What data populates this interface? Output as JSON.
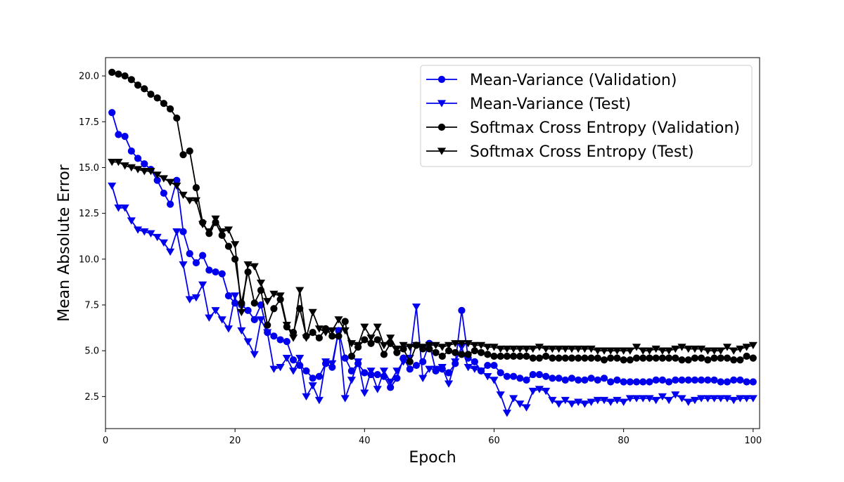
{
  "chart_data": {
    "type": "line",
    "title": "",
    "xlabel": "Epoch",
    "ylabel": "Mean Absolute Error",
    "xlim": [
      0,
      101
    ],
    "ylim": [
      0.75,
      21.0
    ],
    "xticks": [
      0,
      20,
      40,
      60,
      80,
      100
    ],
    "xtick_labels": [
      "0",
      "20",
      "40",
      "60",
      "80",
      "100"
    ],
    "yticks": [
      2.5,
      5.0,
      7.5,
      10.0,
      12.5,
      15.0,
      17.5,
      20.0
    ],
    "ytick_labels": [
      "2.5",
      "5.0",
      "7.5",
      "10.0",
      "12.5",
      "15.0",
      "17.5",
      "20.0"
    ],
    "grid": false,
    "legend_position": "top-right",
    "x": [
      1,
      2,
      3,
      4,
      5,
      6,
      7,
      8,
      9,
      10,
      11,
      12,
      13,
      14,
      15,
      16,
      17,
      18,
      19,
      20,
      21,
      22,
      23,
      24,
      25,
      26,
      27,
      28,
      29,
      30,
      31,
      32,
      33,
      34,
      35,
      36,
      37,
      38,
      39,
      40,
      41,
      42,
      43,
      44,
      45,
      46,
      47,
      48,
      49,
      50,
      51,
      52,
      53,
      54,
      55,
      56,
      57,
      58,
      59,
      60,
      61,
      62,
      63,
      64,
      65,
      66,
      67,
      68,
      69,
      70,
      71,
      72,
      73,
      74,
      75,
      76,
      77,
      78,
      79,
      80,
      81,
      82,
      83,
      84,
      85,
      86,
      87,
      88,
      89,
      90,
      91,
      92,
      93,
      94,
      95,
      96,
      97,
      98,
      99,
      100
    ],
    "series": [
      {
        "name": "Mean-Variance (Validation)",
        "color": "#0000ee",
        "marker": "circle",
        "values": [
          18.0,
          16.8,
          16.7,
          15.9,
          15.5,
          15.2,
          14.9,
          14.3,
          13.6,
          13.0,
          14.3,
          11.5,
          10.3,
          9.8,
          10.2,
          9.4,
          9.3,
          9.2,
          8.0,
          7.6,
          7.5,
          7.2,
          6.7,
          7.5,
          6.0,
          5.8,
          5.6,
          5.5,
          4.5,
          4.2,
          3.9,
          3.5,
          3.6,
          4.3,
          4.1,
          6.1,
          4.6,
          3.9,
          4.3,
          3.8,
          3.7,
          3.7,
          3.6,
          3.0,
          3.5,
          4.6,
          4.0,
          4.2,
          4.4,
          5.4,
          3.9,
          4.0,
          3.8,
          4.3,
          7.2,
          4.6,
          4.4,
          3.9,
          4.2,
          4.2,
          3.8,
          3.6,
          3.6,
          3.5,
          3.4,
          3.7,
          3.7,
          3.6,
          3.5,
          3.5,
          3.4,
          3.5,
          3.4,
          3.4,
          3.5,
          3.4,
          3.5,
          3.3,
          3.4,
          3.3,
          3.3,
          3.3,
          3.3,
          3.3,
          3.4,
          3.4,
          3.3,
          3.4,
          3.4,
          3.4,
          3.4,
          3.4,
          3.4,
          3.4,
          3.3,
          3.3,
          3.4,
          3.4,
          3.3,
          3.3
        ]
      },
      {
        "name": "Mean-Variance (Test)",
        "color": "#0000ee",
        "marker": "triangle-down",
        "values": [
          14.0,
          12.8,
          12.8,
          12.1,
          11.6,
          11.5,
          11.4,
          11.2,
          10.9,
          10.4,
          11.5,
          9.7,
          7.8,
          7.9,
          8.6,
          6.8,
          7.2,
          6.7,
          6.2,
          8.0,
          6.1,
          5.5,
          4.8,
          6.7,
          6.0,
          4.0,
          4.1,
          4.6,
          3.9,
          4.6,
          2.5,
          3.1,
          2.3,
          4.4,
          4.3,
          6.1,
          2.4,
          3.4,
          4.4,
          2.7,
          3.9,
          2.9,
          3.9,
          3.3,
          3.9,
          4.4,
          4.6,
          7.4,
          3.5,
          4.0,
          4.0,
          4.1,
          3.2,
          4.4,
          5.2,
          4.1,
          4.0,
          3.9,
          3.6,
          3.4,
          2.6,
          1.6,
          2.4,
          2.1,
          1.9,
          2.8,
          2.9,
          2.8,
          2.3,
          2.1,
          2.3,
          2.1,
          2.2,
          2.1,
          2.2,
          2.3,
          2.3,
          2.2,
          2.3,
          2.2,
          2.4,
          2.4,
          2.4,
          2.4,
          2.3,
          2.5,
          2.3,
          2.6,
          2.4,
          2.2,
          2.3,
          2.4,
          2.4,
          2.4,
          2.4,
          2.4,
          2.3,
          2.4,
          2.4,
          2.4
        ]
      },
      {
        "name": "Softmax Cross Entropy (Validation)",
        "color": "#000000",
        "marker": "circle",
        "values": [
          20.2,
          20.1,
          20.0,
          19.8,
          19.5,
          19.3,
          19.0,
          18.8,
          18.5,
          18.2,
          17.7,
          15.7,
          15.9,
          13.9,
          12.0,
          11.4,
          12.0,
          11.3,
          10.7,
          10.0,
          7.6,
          9.3,
          7.6,
          8.3,
          6.4,
          7.3,
          7.8,
          6.3,
          6.0,
          7.3,
          5.8,
          6.0,
          5.7,
          6.2,
          5.8,
          5.8,
          6.6,
          4.7,
          5.2,
          5.6,
          5.4,
          5.6,
          4.8,
          5.4,
          4.9,
          5.1,
          4.4,
          5.3,
          5.1,
          5.1,
          4.9,
          4.7,
          5.0,
          4.9,
          4.8,
          4.8,
          5.0,
          4.9,
          4.8,
          4.7,
          4.7,
          4.7,
          4.7,
          4.7,
          4.7,
          4.6,
          4.6,
          4.7,
          4.6,
          4.6,
          4.6,
          4.6,
          4.6,
          4.6,
          4.6,
          4.6,
          4.5,
          4.6,
          4.6,
          4.5,
          4.5,
          4.6,
          4.6,
          4.6,
          4.6,
          4.6,
          4.6,
          4.6,
          4.5,
          4.5,
          4.6,
          4.6,
          4.5,
          4.6,
          4.6,
          4.6,
          4.5,
          4.5,
          4.7,
          4.6
        ]
      },
      {
        "name": "Softmax Cross Entropy (Test)",
        "color": "#000000",
        "marker": "triangle-down",
        "values": [
          15.3,
          15.3,
          15.1,
          15.0,
          14.9,
          14.8,
          14.8,
          14.6,
          14.4,
          14.2,
          14.0,
          13.5,
          13.2,
          13.2,
          11.9,
          11.5,
          12.2,
          11.5,
          11.6,
          10.8,
          7.1,
          9.7,
          9.6,
          8.7,
          7.7,
          8.1,
          8.0,
          6.4,
          5.7,
          8.3,
          5.7,
          7.1,
          6.2,
          6.0,
          6.1,
          6.7,
          6.1,
          5.4,
          5.3,
          6.3,
          5.7,
          6.3,
          5.3,
          5.7,
          5.1,
          5.3,
          5.2,
          5.3,
          5.2,
          5.3,
          5.3,
          5.2,
          5.3,
          5.4,
          5.4,
          5.4,
          5.3,
          5.3,
          5.2,
          5.2,
          5.1,
          5.1,
          5.1,
          5.1,
          5.1,
          5.1,
          5.2,
          5.1,
          5.1,
          5.1,
          5.1,
          5.1,
          5.1,
          5.1,
          5.1,
          5.0,
          5.0,
          5.0,
          5.0,
          5.0,
          5.0,
          5.2,
          5.0,
          5.0,
          5.1,
          5.0,
          5.0,
          5.1,
          5.2,
          5.1,
          5.1,
          5.1,
          5.0,
          5.0,
          5.0,
          5.2,
          5.0,
          5.1,
          5.2,
          5.3
        ]
      }
    ]
  }
}
